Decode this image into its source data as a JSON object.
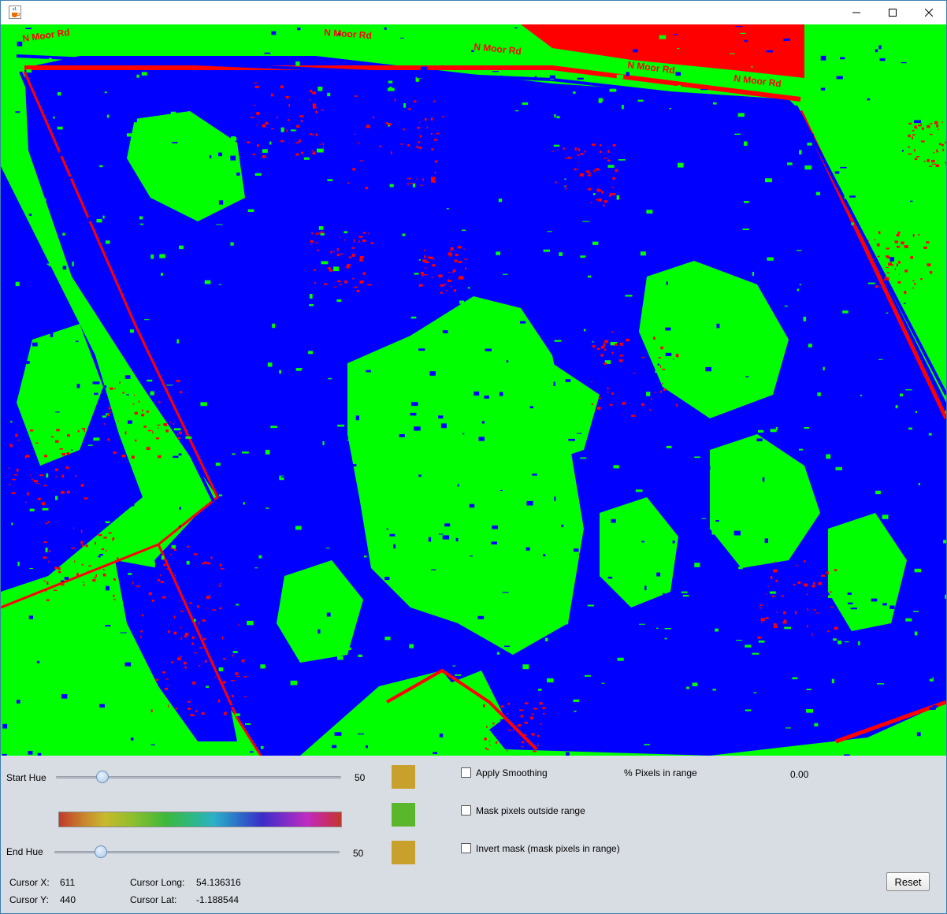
{
  "window": {
    "icons": {
      "app": "java-cup-icon",
      "minimize": "minimize-icon",
      "maximize": "maximize-icon",
      "close": "close-icon"
    }
  },
  "map": {
    "colors": {
      "background": "#00ff00",
      "mask_blue": "#0000ff",
      "mask_red": "#ff0000"
    },
    "road_labels": [
      "N Moor Rd",
      "N Moor Rd",
      "N Moor Rd",
      "N Moor Rd",
      "N Moor Rd"
    ]
  },
  "controls": {
    "start_hue": {
      "label": "Start Hue",
      "value": "50",
      "position_fraction": 0.16
    },
    "end_hue": {
      "label": "End Hue",
      "value": "50",
      "position_fraction": 0.16
    },
    "swatches": {
      "start": "#c8a12c",
      "mid": "#5ab72c",
      "end": "#c8a12c"
    },
    "apply_smoothing": {
      "label": "Apply Smoothing",
      "checked": false
    },
    "mask_outside": {
      "label": "Mask pixels outside range",
      "checked": false
    },
    "invert_mask": {
      "label": "Invert mask (mask pixels in range)",
      "checked": false
    },
    "pixels_in_range": {
      "label": "% Pixels in range",
      "value": "0.00"
    },
    "reset_label": "Reset"
  },
  "cursor": {
    "x_label": "Cursor X:",
    "x_value": "611",
    "y_label": "Cursor Y:",
    "y_value": "440",
    "long_label": "Cursor Long:",
    "long_value": "54.136316",
    "lat_label": "Cursor Lat:",
    "lat_value": "-1.188544"
  }
}
